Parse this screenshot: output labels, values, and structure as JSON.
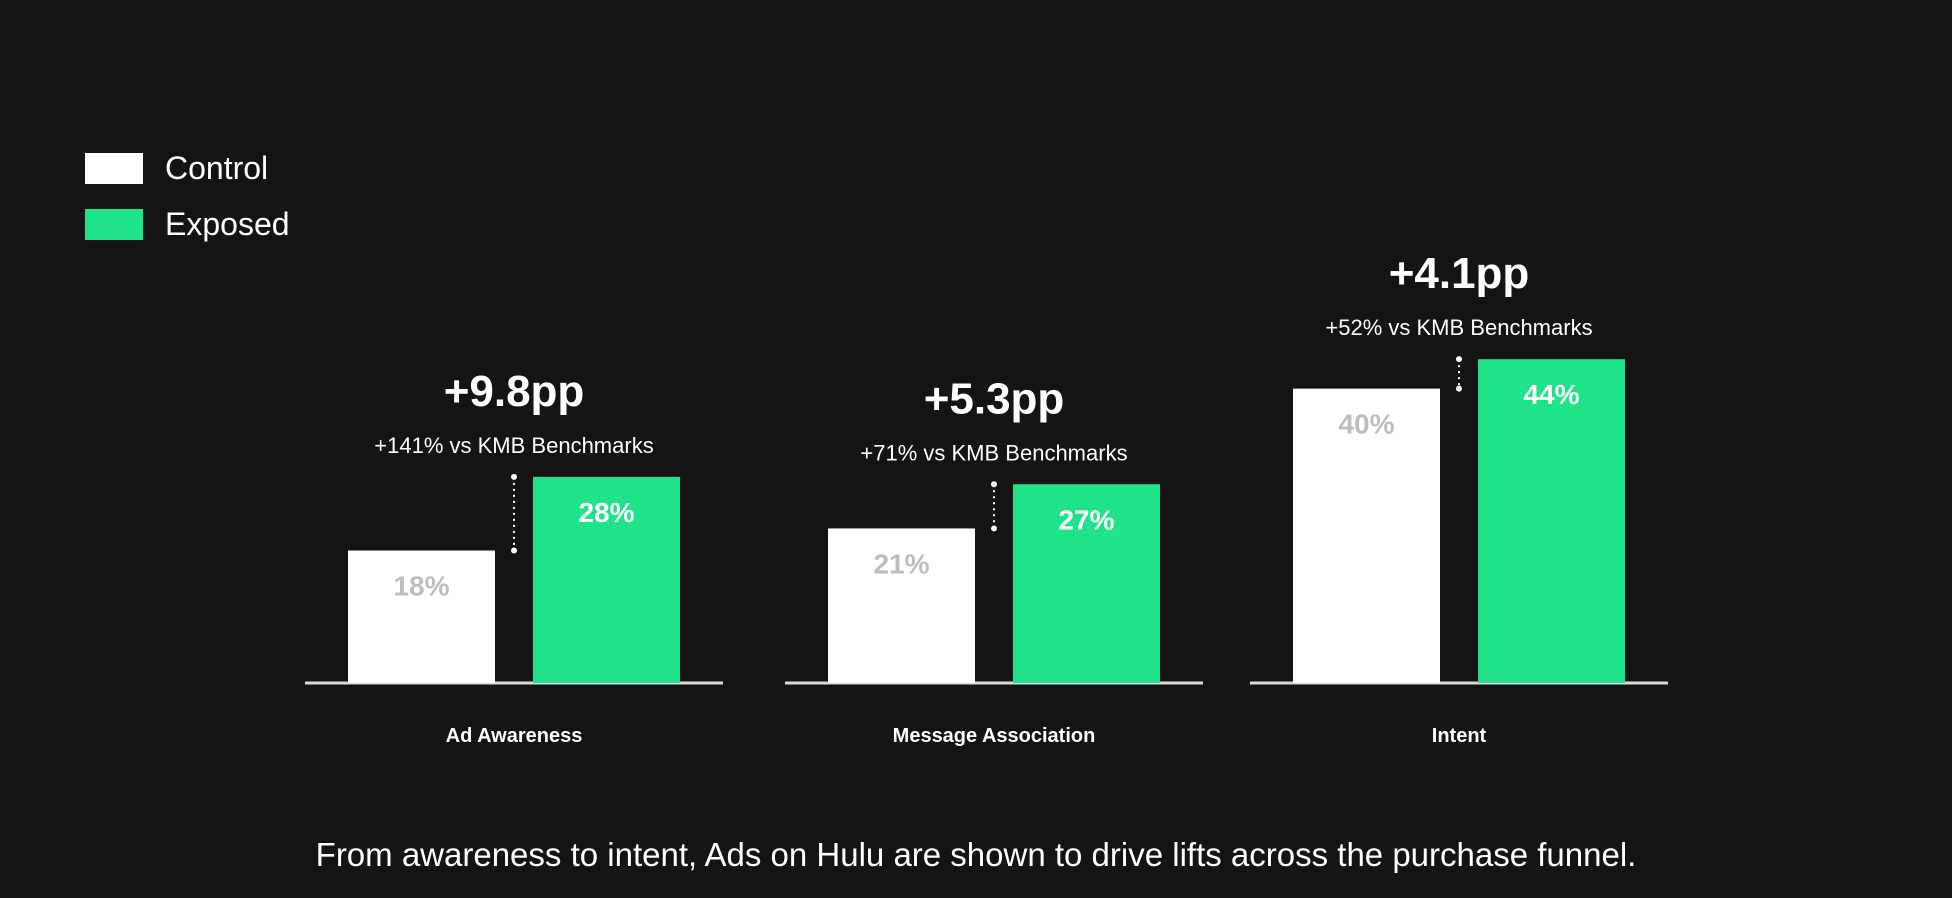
{
  "legend": [
    {
      "label": "Control",
      "color": "#ffffff"
    },
    {
      "label": "Exposed",
      "color": "#1ee388"
    }
  ],
  "chart_data": {
    "type": "bar",
    "categories": [
      "Ad Awareness",
      "Message Association",
      "Intent"
    ],
    "series": [
      {
        "name": "Control",
        "values": [
          18,
          21,
          40
        ],
        "labels": [
          "18%",
          "21%",
          "40%"
        ],
        "color": "#ffffff"
      },
      {
        "name": "Exposed",
        "values": [
          28,
          27,
          44
        ],
        "labels": [
          "28%",
          "27%",
          "44%"
        ],
        "color": "#1ee388"
      }
    ],
    "annotations": [
      {
        "lift": "+9.8pp",
        "benchmark": "+141% vs KMB Benchmarks"
      },
      {
        "lift": "+5.3pp",
        "benchmark": "+71% vs KMB Benchmarks"
      },
      {
        "lift": "+4.1pp",
        "benchmark": "+52% vs KMB Benchmarks"
      }
    ],
    "ylim": [
      0,
      44
    ],
    "grid": false,
    "legend_position": "top-left"
  },
  "caption": "From awareness to intent, Ads on Hulu are shown to drive lifts across the purchase funnel."
}
